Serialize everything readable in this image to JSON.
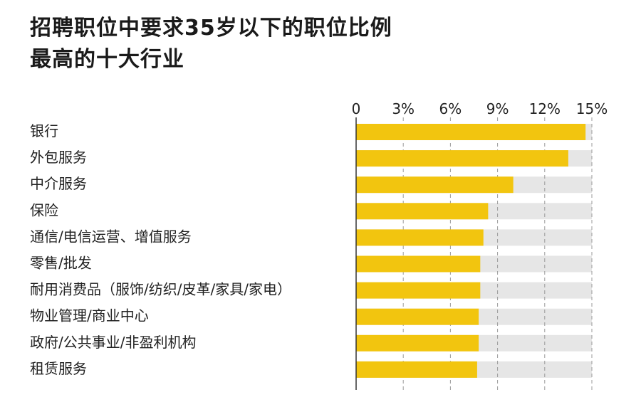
{
  "title_lines": [
    "招聘职位中要求35岁以下的职位比例",
    "最高的十大行业"
  ],
  "colors": {
    "bar": "#f2c50f",
    "track": "#e6e6e6",
    "grid": "#9a9a9a",
    "axis": "#333333"
  },
  "chart_data": {
    "type": "bar",
    "orientation": "horizontal",
    "title": "招聘职位中要求35岁以下的职位比例最高的十大行业",
    "categories": [
      "银行",
      "外包服务",
      "中介服务",
      "保险",
      "通信/电信运营、增值服务",
      "零售/批发",
      "耐用消费品（服饰/纺织/皮革/家具/家电）",
      "物业管理/商业中心",
      "政府/公共事业/非盈利机构",
      "租赁服务"
    ],
    "values": [
      14.6,
      13.5,
      10.0,
      8.4,
      8.1,
      7.9,
      7.9,
      7.8,
      7.8,
      7.7
    ],
    "xlim": [
      0,
      15
    ],
    "xticks": [
      0,
      3,
      6,
      9,
      12,
      15
    ],
    "xtick_labels": [
      "0",
      "3%",
      "6%",
      "9%",
      "12%",
      "15%"
    ],
    "axis_position": "top",
    "grid": true
  }
}
